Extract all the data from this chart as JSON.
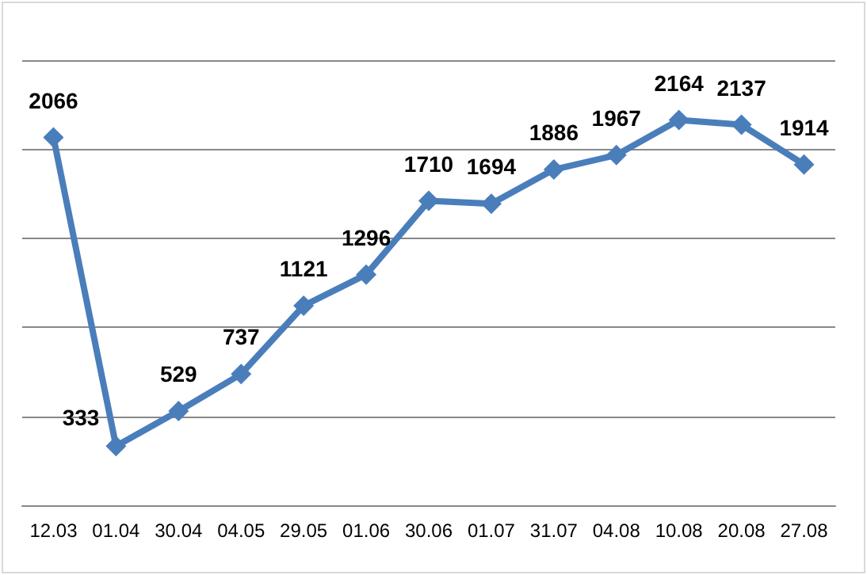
{
  "chart_data": {
    "type": "line",
    "categories": [
      "12.03",
      "01.04",
      "30.04",
      "04.05",
      "29.05",
      "01.06",
      "30.06",
      "01.07",
      "31.07",
      "04.08",
      "10.08",
      "20.08",
      "27.08"
    ],
    "series": [
      {
        "color": "#4a7ebb",
        "values": [
          2066,
          333,
          529,
          737,
          1121,
          1296,
          1710,
          1694,
          1886,
          1967,
          2164,
          2137,
          1914
        ]
      }
    ],
    "ylim": [
      0,
      2500
    ],
    "yticks": [
      {
        "value": 0,
        "label": null
      },
      {
        "value": 500,
        "label": null
      },
      {
        "value": 1000,
        "label": null
      },
      {
        "value": 1500,
        "label": null
      },
      {
        "value": 2000,
        "label": null
      },
      {
        "value": 2500,
        "label": null
      }
    ],
    "tick_labels": "x",
    "grid": "y",
    "marker": "diamond",
    "line_style": "solid",
    "data_labels": true
  }
}
